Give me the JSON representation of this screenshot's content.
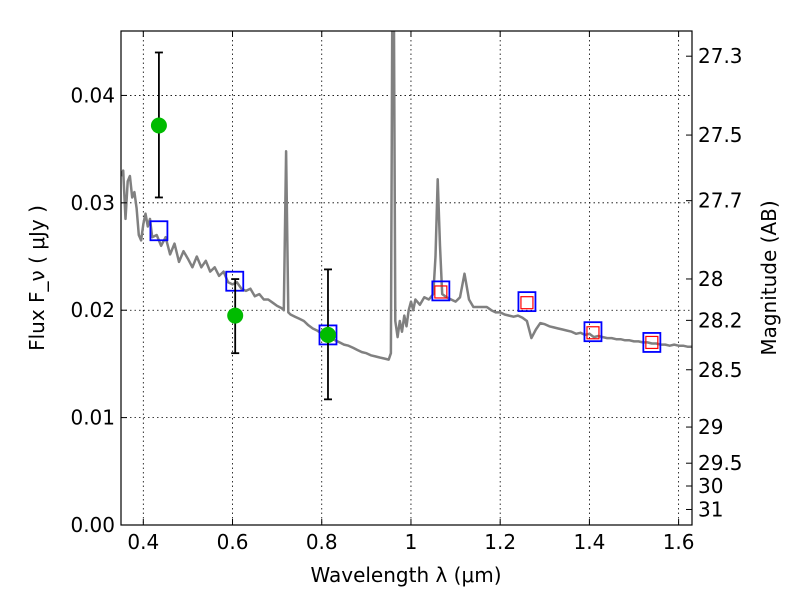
{
  "chart_data": {
    "type": "scatter",
    "xlabel": "Wavelength  λ (μm)",
    "ylabel": "Flux  F_ν  ( μJy )",
    "ylabel_right": "Magnitude (AB)",
    "xlim": [
      0.35,
      1.63
    ],
    "ylim": [
      0.0,
      0.046
    ],
    "grid": true,
    "x_ticks": [
      {
        "value": 0.4,
        "label": "0.4"
      },
      {
        "value": 0.6,
        "label": "0.6"
      },
      {
        "value": 0.8,
        "label": "0.8"
      },
      {
        "value": 1.0,
        "label": "1"
      },
      {
        "value": 1.2,
        "label": "1.2"
      },
      {
        "value": 1.4,
        "label": "1.4"
      },
      {
        "value": 1.6,
        "label": "1.6"
      }
    ],
    "y_ticks": [
      {
        "value": 0.0,
        "label": "0.00"
      },
      {
        "value": 0.01,
        "label": "0.01"
      },
      {
        "value": 0.02,
        "label": "0.02"
      },
      {
        "value": 0.03,
        "label": "0.03"
      },
      {
        "value": 0.04,
        "label": "0.04"
      }
    ],
    "right_ticks": [
      {
        "value": 27.3,
        "label": "27.3"
      },
      {
        "value": 27.5,
        "label": "27.5"
      },
      {
        "value": 27.7,
        "label": "27.7"
      },
      {
        "value": 28.0,
        "label": "28"
      },
      {
        "value": 28.2,
        "label": "28.2"
      },
      {
        "value": 28.5,
        "label": "28.5"
      },
      {
        "value": 29.0,
        "label": "29"
      },
      {
        "value": 29.5,
        "label": "29.5"
      },
      {
        "value": 30.0,
        "label": "30"
      },
      {
        "value": 31.0,
        "label": "31"
      }
    ],
    "series": [
      {
        "kind": "model_spectrum",
        "color": "#808080",
        "points": [
          [
            0.35,
            0.0325
          ],
          [
            0.355,
            0.033
          ],
          [
            0.36,
            0.0285
          ],
          [
            0.365,
            0.032
          ],
          [
            0.37,
            0.0325
          ],
          [
            0.375,
            0.0305
          ],
          [
            0.38,
            0.031
          ],
          [
            0.385,
            0.0295
          ],
          [
            0.39,
            0.027
          ],
          [
            0.395,
            0.0265
          ],
          [
            0.4,
            0.028
          ],
          [
            0.405,
            0.029
          ],
          [
            0.41,
            0.0278
          ],
          [
            0.415,
            0.0285
          ],
          [
            0.42,
            0.0268
          ],
          [
            0.43,
            0.027
          ],
          [
            0.44,
            0.026
          ],
          [
            0.45,
            0.0268
          ],
          [
            0.46,
            0.0252
          ],
          [
            0.47,
            0.0262
          ],
          [
            0.48,
            0.0245
          ],
          [
            0.49,
            0.0255
          ],
          [
            0.5,
            0.0248
          ],
          [
            0.51,
            0.024
          ],
          [
            0.52,
            0.025
          ],
          [
            0.53,
            0.024
          ],
          [
            0.54,
            0.0246
          ],
          [
            0.55,
            0.0236
          ],
          [
            0.56,
            0.024
          ],
          [
            0.57,
            0.0232
          ],
          [
            0.58,
            0.0236
          ],
          [
            0.59,
            0.0226
          ],
          [
            0.6,
            0.0224
          ],
          [
            0.61,
            0.0226
          ],
          [
            0.62,
            0.022
          ],
          [
            0.63,
            0.0218
          ],
          [
            0.64,
            0.022
          ],
          [
            0.65,
            0.0213
          ],
          [
            0.66,
            0.0215
          ],
          [
            0.67,
            0.021
          ],
          [
            0.68,
            0.021
          ],
          [
            0.69,
            0.0207
          ],
          [
            0.7,
            0.0204
          ],
          [
            0.71,
            0.0202
          ],
          [
            0.715,
            0.02
          ],
          [
            0.72,
            0.0348
          ],
          [
            0.725,
            0.0198
          ],
          [
            0.73,
            0.0196
          ],
          [
            0.74,
            0.0194
          ],
          [
            0.75,
            0.0192
          ],
          [
            0.76,
            0.019
          ],
          [
            0.77,
            0.0186
          ],
          [
            0.78,
            0.0183
          ],
          [
            0.79,
            0.0181
          ],
          [
            0.8,
            0.0178
          ],
          [
            0.81,
            0.0176
          ],
          [
            0.82,
            0.0174
          ],
          [
            0.83,
            0.0172
          ],
          [
            0.84,
            0.017
          ],
          [
            0.85,
            0.0168
          ],
          [
            0.86,
            0.0167
          ],
          [
            0.87,
            0.0165
          ],
          [
            0.88,
            0.0163
          ],
          [
            0.89,
            0.0161
          ],
          [
            0.9,
            0.016
          ],
          [
            0.91,
            0.0158
          ],
          [
            0.92,
            0.0157
          ],
          [
            0.93,
            0.0156
          ],
          [
            0.94,
            0.0155
          ],
          [
            0.95,
            0.0154
          ],
          [
            0.955,
            0.016
          ],
          [
            0.958,
            0.046
          ],
          [
            0.962,
            0.046
          ],
          [
            0.965,
            0.019
          ],
          [
            0.97,
            0.0175
          ],
          [
            0.975,
            0.019
          ],
          [
            0.98,
            0.018
          ],
          [
            0.985,
            0.0195
          ],
          [
            0.99,
            0.0185
          ],
          [
            0.995,
            0.02
          ],
          [
            1.0,
            0.0208
          ],
          [
            1.005,
            0.02
          ],
          [
            1.01,
            0.021
          ],
          [
            1.02,
            0.0205
          ],
          [
            1.03,
            0.0212
          ],
          [
            1.04,
            0.021
          ],
          [
            1.05,
            0.0215
          ],
          [
            1.055,
            0.025
          ],
          [
            1.06,
            0.0322
          ],
          [
            1.065,
            0.026
          ],
          [
            1.07,
            0.0215
          ],
          [
            1.08,
            0.0212
          ],
          [
            1.09,
            0.021
          ],
          [
            1.1,
            0.0208
          ],
          [
            1.11,
            0.0212
          ],
          [
            1.12,
            0.0234
          ],
          [
            1.13,
            0.021
          ],
          [
            1.14,
            0.0203
          ],
          [
            1.15,
            0.0203
          ],
          [
            1.16,
            0.0203
          ],
          [
            1.17,
            0.0203
          ],
          [
            1.18,
            0.02
          ],
          [
            1.19,
            0.0198
          ],
          [
            1.2,
            0.0198
          ],
          [
            1.21,
            0.0196
          ],
          [
            1.22,
            0.0195
          ],
          [
            1.23,
            0.0194
          ],
          [
            1.24,
            0.0195
          ],
          [
            1.25,
            0.0193
          ],
          [
            1.26,
            0.019
          ],
          [
            1.27,
            0.0174
          ],
          [
            1.28,
            0.0182
          ],
          [
            1.29,
            0.0188
          ],
          [
            1.3,
            0.0187
          ],
          [
            1.31,
            0.0185
          ],
          [
            1.32,
            0.0184
          ],
          [
            1.33,
            0.0183
          ],
          [
            1.34,
            0.0182
          ],
          [
            1.35,
            0.0181
          ],
          [
            1.36,
            0.018
          ],
          [
            1.37,
            0.0178
          ],
          [
            1.38,
            0.0179
          ],
          [
            1.39,
            0.0177
          ],
          [
            1.4,
            0.0178
          ],
          [
            1.41,
            0.0175
          ],
          [
            1.42,
            0.0176
          ],
          [
            1.43,
            0.0175
          ],
          [
            1.44,
            0.0174
          ],
          [
            1.45,
            0.0174
          ],
          [
            1.46,
            0.0173
          ],
          [
            1.47,
            0.0173
          ],
          [
            1.48,
            0.0172
          ],
          [
            1.49,
            0.0172
          ],
          [
            1.5,
            0.0171
          ],
          [
            1.51,
            0.0171
          ],
          [
            1.52,
            0.017
          ],
          [
            1.53,
            0.017
          ],
          [
            1.54,
            0.0169
          ],
          [
            1.55,
            0.0169
          ],
          [
            1.56,
            0.0168
          ],
          [
            1.57,
            0.0168
          ],
          [
            1.58,
            0.0167
          ],
          [
            1.59,
            0.0168
          ],
          [
            1.6,
            0.0167
          ],
          [
            1.61,
            0.0167
          ],
          [
            1.62,
            0.0166
          ],
          [
            1.63,
            0.0166
          ]
        ]
      },
      {
        "kind": "model_photometry",
        "marker": "open-square",
        "color": "#0000ff",
        "points": [
          [
            0.435,
            0.0274
          ],
          [
            0.605,
            0.0227
          ],
          [
            0.814,
            0.0177
          ],
          [
            1.067,
            0.0218
          ],
          [
            1.26,
            0.0208
          ],
          [
            1.408,
            0.018
          ],
          [
            1.54,
            0.017
          ]
        ]
      },
      {
        "kind": "measured_photometry",
        "marker": "open-square",
        "color": "#ff0000",
        "points": [
          [
            1.067,
            0.0217
          ],
          [
            1.26,
            0.0207
          ],
          [
            1.408,
            0.0179
          ],
          [
            1.54,
            0.017
          ]
        ]
      },
      {
        "kind": "measured_photometry",
        "marker": "filled-circle",
        "color": "#00bb00",
        "points": [
          {
            "x": 0.435,
            "y": 0.0372,
            "ylow": 0.0305,
            "yhigh": 0.044
          },
          {
            "x": 0.606,
            "y": 0.0195,
            "ylow": 0.016,
            "yhigh": 0.0229
          },
          {
            "x": 0.814,
            "y": 0.0177,
            "ylow": 0.0117,
            "yhigh": 0.0238
          }
        ]
      }
    ]
  }
}
